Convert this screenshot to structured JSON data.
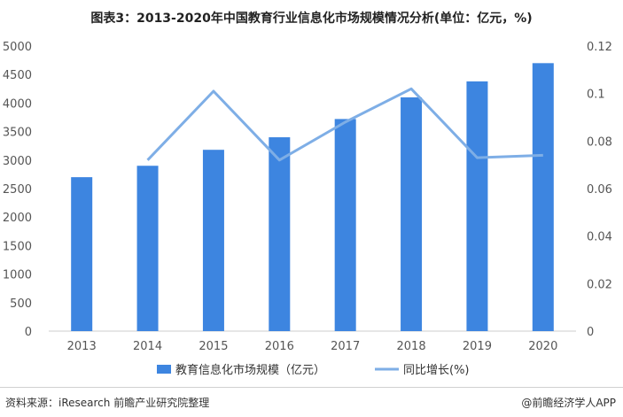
{
  "title": "图表3：2013-2020年中国教育行业信息化市场规模情况分析(单位：亿元，%)",
  "source": "资料来源：iResearch 前瞻产业研究院整理",
  "brand": "@前瞻经济学人APP",
  "chart_data": {
    "type": "bar+line",
    "categories": [
      "2013",
      "2014",
      "2015",
      "2016",
      "2017",
      "2018",
      "2019",
      "2020"
    ],
    "series": [
      {
        "name": "教育信息化市场规模（亿元）",
        "type": "bar",
        "axis": "left",
        "color": "#3d85e0",
        "values": [
          2700,
          2900,
          3180,
          3400,
          3720,
          4100,
          4380,
          4700
        ]
      },
      {
        "name": "同比增长(%)",
        "type": "line",
        "axis": "right",
        "color": "#7eaee6",
        "values": [
          null,
          0.072,
          0.101,
          0.072,
          0.088,
          0.102,
          0.073,
          0.074
        ]
      }
    ],
    "y_left": {
      "min": 0,
      "max": 5000,
      "step": 500,
      "ticks": [
        "0",
        "500",
        "1000",
        "1500",
        "2000",
        "2500",
        "3000",
        "3500",
        "4000",
        "4500",
        "5000"
      ]
    },
    "y_right": {
      "min": 0,
      "max": 0.12,
      "step": 0.02,
      "ticks": [
        "0",
        "0.02",
        "0.04",
        "0.06",
        "0.08",
        "0.1",
        "0.12"
      ]
    },
    "legend_placement": "bottom",
    "grid": false
  }
}
